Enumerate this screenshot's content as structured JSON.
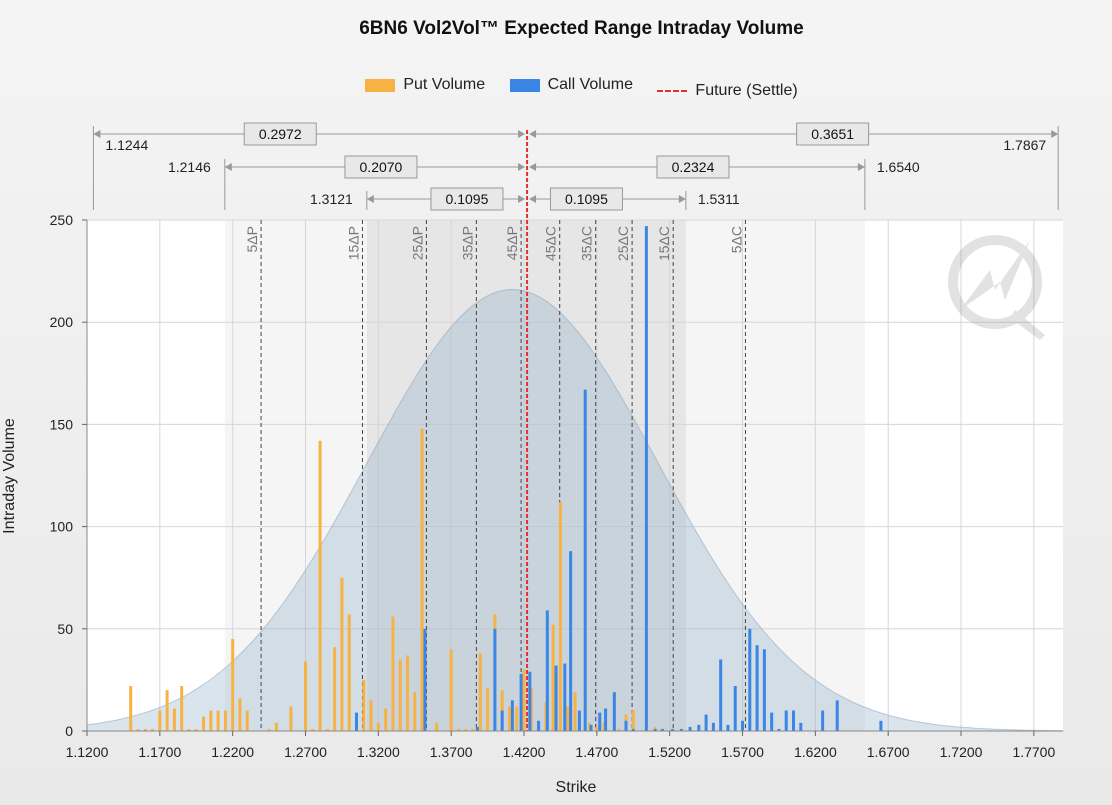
{
  "chart_data": {
    "type": "bar",
    "title": "6BN6 Vol2Vol™ Expected Range Intraday Volume",
    "xlabel": "Strike",
    "ylabel": "Intraday Volume",
    "xlim": [
      1.12,
      1.79
    ],
    "ylim": [
      0,
      250
    ],
    "grid": true,
    "legend_position": "top-center",
    "x_ticks": [
      "1.1200",
      "1.1700",
      "1.2200",
      "1.2700",
      "1.3200",
      "1.3700",
      "1.4200",
      "1.4700",
      "1.5200",
      "1.5700",
      "1.6200",
      "1.6700",
      "1.7200",
      "1.7700"
    ],
    "y_ticks": [
      "0",
      "50",
      "100",
      "150",
      "200",
      "250"
    ],
    "future_settle": 1.4221,
    "distribution": {
      "mean": 1.4121,
      "sd": 0.1,
      "peak": 216
    },
    "delta_bands": [
      {
        "label": "5ΔP",
        "x": 1.2395
      },
      {
        "label": "15ΔP",
        "x": 1.3091
      },
      {
        "label": "25ΔP",
        "x": 1.353
      },
      {
        "label": "35ΔP",
        "x": 1.3873
      },
      {
        "label": "45ΔP",
        "x": 1.418
      },
      {
        "label": "45ΔC",
        "x": 1.4445
      },
      {
        "label": "35ΔC",
        "x": 1.4692
      },
      {
        "label": "25ΔC",
        "x": 1.4942
      },
      {
        "label": "15ΔC",
        "x": 1.5224
      },
      {
        "label": "5ΔC",
        "x": 1.572
      }
    ],
    "expected_ranges": [
      {
        "level": 1,
        "low": "1.1244",
        "high": "1.7867",
        "put_width": "0.2972",
        "call_width": "0.3651",
        "low_x": 1.1244,
        "high_x": 1.7867
      },
      {
        "level": 2,
        "low": "1.2146",
        "high": "1.6540",
        "put_width": "0.2070",
        "call_width": "0.2324",
        "low_x": 1.2146,
        "high_x": 1.654
      },
      {
        "level": 3,
        "low": "1.3121",
        "high": "1.5311",
        "put_width": "0.1095",
        "call_width": "0.1095",
        "low_x": 1.3121,
        "high_x": 1.5311
      }
    ],
    "series": [
      {
        "name": "Put Volume",
        "color": "#f7b244",
        "points": [
          [
            1.15,
            22
          ],
          [
            1.155,
            1
          ],
          [
            1.16,
            1
          ],
          [
            1.165,
            1
          ],
          [
            1.17,
            10
          ],
          [
            1.175,
            20
          ],
          [
            1.18,
            11
          ],
          [
            1.185,
            22
          ],
          [
            1.19,
            1
          ],
          [
            1.195,
            1
          ],
          [
            1.2,
            7
          ],
          [
            1.205,
            10
          ],
          [
            1.21,
            10
          ],
          [
            1.215,
            10
          ],
          [
            1.22,
            45
          ],
          [
            1.225,
            16
          ],
          [
            1.23,
            10
          ],
          [
            1.245,
            1
          ],
          [
            1.25,
            4
          ],
          [
            1.26,
            12
          ],
          [
            1.27,
            34
          ],
          [
            1.275,
            1
          ],
          [
            1.28,
            142
          ],
          [
            1.285,
            1
          ],
          [
            1.29,
            41
          ],
          [
            1.295,
            75
          ],
          [
            1.3,
            57
          ],
          [
            1.305,
            1
          ],
          [
            1.31,
            25
          ],
          [
            1.315,
            15
          ],
          [
            1.32,
            4
          ],
          [
            1.325,
            11
          ],
          [
            1.33,
            56
          ],
          [
            1.335,
            35
          ],
          [
            1.34,
            37
          ],
          [
            1.345,
            19
          ],
          [
            1.35,
            148
          ],
          [
            1.36,
            4
          ],
          [
            1.37,
            40
          ],
          [
            1.375,
            1
          ],
          [
            1.38,
            1
          ],
          [
            1.385,
            1
          ],
          [
            1.39,
            38
          ],
          [
            1.395,
            21
          ],
          [
            1.4,
            57
          ],
          [
            1.405,
            20
          ],
          [
            1.41,
            12
          ],
          [
            1.415,
            12
          ],
          [
            1.42,
            30
          ],
          [
            1.425,
            21
          ],
          [
            1.43,
            1
          ],
          [
            1.435,
            14
          ],
          [
            1.44,
            52
          ],
          [
            1.445,
            112
          ],
          [
            1.45,
            12
          ],
          [
            1.455,
            19
          ],
          [
            1.465,
            4
          ],
          [
            1.47,
            2
          ],
          [
            1.475,
            4
          ],
          [
            1.485,
            1
          ],
          [
            1.49,
            8
          ],
          [
            1.495,
            10
          ],
          [
            1.51,
            2
          ],
          [
            1.515,
            1
          ]
        ]
      },
      {
        "name": "Call Volume",
        "color": "#3a86e6",
        "points": [
          [
            1.305,
            9
          ],
          [
            1.352,
            50
          ],
          [
            1.388,
            2
          ],
          [
            1.4,
            50
          ],
          [
            1.405,
            10
          ],
          [
            1.412,
            15
          ],
          [
            1.418,
            28
          ],
          [
            1.424,
            29
          ],
          [
            1.43,
            5
          ],
          [
            1.436,
            59
          ],
          [
            1.442,
            32
          ],
          [
            1.448,
            33
          ],
          [
            1.452,
            88
          ],
          [
            1.458,
            10
          ],
          [
            1.462,
            167
          ],
          [
            1.466,
            3
          ],
          [
            1.472,
            9
          ],
          [
            1.476,
            11
          ],
          [
            1.482,
            19
          ],
          [
            1.49,
            5
          ],
          [
            1.495,
            1
          ],
          [
            1.504,
            247
          ],
          [
            1.51,
            1
          ],
          [
            1.515,
            1
          ],
          [
            1.522,
            1
          ],
          [
            1.528,
            1
          ],
          [
            1.534,
            2
          ],
          [
            1.54,
            3
          ],
          [
            1.545,
            8
          ],
          [
            1.55,
            4
          ],
          [
            1.555,
            35
          ],
          [
            1.56,
            3
          ],
          [
            1.565,
            22
          ],
          [
            1.57,
            5
          ],
          [
            1.575,
            50
          ],
          [
            1.58,
            42
          ],
          [
            1.585,
            40
          ],
          [
            1.59,
            9
          ],
          [
            1.595,
            1
          ],
          [
            1.6,
            10
          ],
          [
            1.605,
            10
          ],
          [
            1.61,
            4
          ],
          [
            1.625,
            10
          ],
          [
            1.635,
            15
          ],
          [
            1.665,
            5
          ]
        ]
      },
      {
        "name": "Future (Settle)",
        "color": "#e03030",
        "points": []
      }
    ]
  }
}
